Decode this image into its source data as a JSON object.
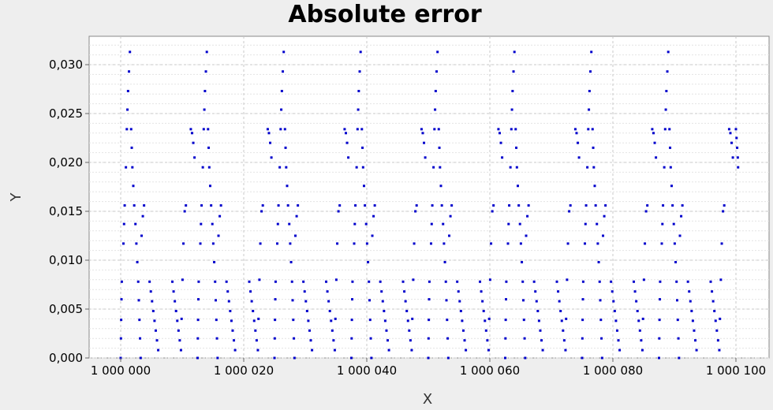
{
  "chart_data": {
    "type": "scatter",
    "title": "Absolute error",
    "xlabel": "X",
    "ylabel": "Y",
    "xlim": [
      1000000,
      1000100
    ],
    "ylim": [
      0.0,
      0.0325
    ],
    "x_ticks": [
      1000000,
      1000020,
      1000040,
      1000060,
      1000080,
      1000100
    ],
    "x_tick_labels": [
      "1 000 000",
      "1 000 020",
      "1 000 040",
      "1 000 060",
      "1 000 080",
      "1 000 100"
    ],
    "y_ticks": [
      0.0,
      0.005,
      0.01,
      0.015,
      0.02,
      0.025,
      0.03
    ],
    "y_tick_labels": [
      "0,000",
      "0,005",
      "0,010",
      "0,015",
      "0,020",
      "0,025",
      "0,030"
    ],
    "grid": true,
    "legend": "none",
    "series_color": "#0000cc",
    "period": 12.5,
    "pattern_offsets": [
      [
        0.0,
        0.0
      ],
      [
        0.04,
        0.002
      ],
      [
        0.08,
        0.0039
      ],
      [
        0.13,
        0.006
      ],
      [
        0.18,
        0.0078
      ],
      [
        0.45,
        0.0117
      ],
      [
        0.55,
        0.0137
      ],
      [
        0.65,
        0.0156
      ],
      [
        0.85,
        0.0195
      ],
      [
        1.0,
        0.0234
      ],
      [
        1.1,
        0.0254
      ],
      [
        1.2,
        0.0273
      ],
      [
        1.35,
        0.0293
      ],
      [
        1.5,
        0.0313
      ],
      [
        1.7,
        0.0234
      ],
      [
        1.8,
        0.0215
      ],
      [
        1.9,
        0.0195
      ],
      [
        2.05,
        0.0176
      ],
      [
        2.2,
        0.0156
      ],
      [
        2.4,
        0.0137
      ],
      [
        2.55,
        0.0117
      ],
      [
        2.7,
        0.0098
      ],
      [
        2.85,
        0.0078
      ],
      [
        2.95,
        0.0059
      ],
      [
        3.05,
        0.0039
      ],
      [
        3.15,
        0.002
      ],
      [
        3.25,
        0.0
      ],
      [
        3.4,
        0.0125
      ],
      [
        3.6,
        0.0145
      ],
      [
        3.8,
        0.0156
      ],
      [
        4.7,
        0.0078
      ],
      [
        4.9,
        0.0068
      ],
      [
        5.1,
        0.0058
      ],
      [
        5.3,
        0.0048
      ],
      [
        5.5,
        0.0038
      ],
      [
        5.7,
        0.0028
      ],
      [
        5.9,
        0.0018
      ],
      [
        6.1,
        0.0008
      ],
      [
        8.4,
        0.0078
      ],
      [
        8.6,
        0.0068
      ],
      [
        8.8,
        0.0058
      ],
      [
        9.0,
        0.0048
      ],
      [
        9.2,
        0.0038
      ],
      [
        9.4,
        0.0028
      ],
      [
        9.6,
        0.0018
      ],
      [
        9.8,
        0.0008
      ],
      [
        9.9,
        0.004
      ],
      [
        10.05,
        0.008
      ],
      [
        10.2,
        0.0117
      ],
      [
        10.4,
        0.015
      ],
      [
        10.6,
        0.0156
      ],
      [
        11.4,
        0.0234
      ],
      [
        11.6,
        0.023
      ],
      [
        11.8,
        0.022
      ],
      [
        12.0,
        0.0205
      ]
    ],
    "cycle_starts": [
      1000000,
      1000012.5,
      1000025,
      1000037.5,
      1000050,
      1000062.5,
      1000075,
      1000087.5
    ],
    "trailing_points": [
      [
        1000100.0,
        0.0234
      ],
      [
        1000100.1,
        0.0225
      ],
      [
        1000100.2,
        0.0215
      ],
      [
        1000100.3,
        0.0205
      ],
      [
        1000100.35,
        0.0195
      ]
    ]
  }
}
